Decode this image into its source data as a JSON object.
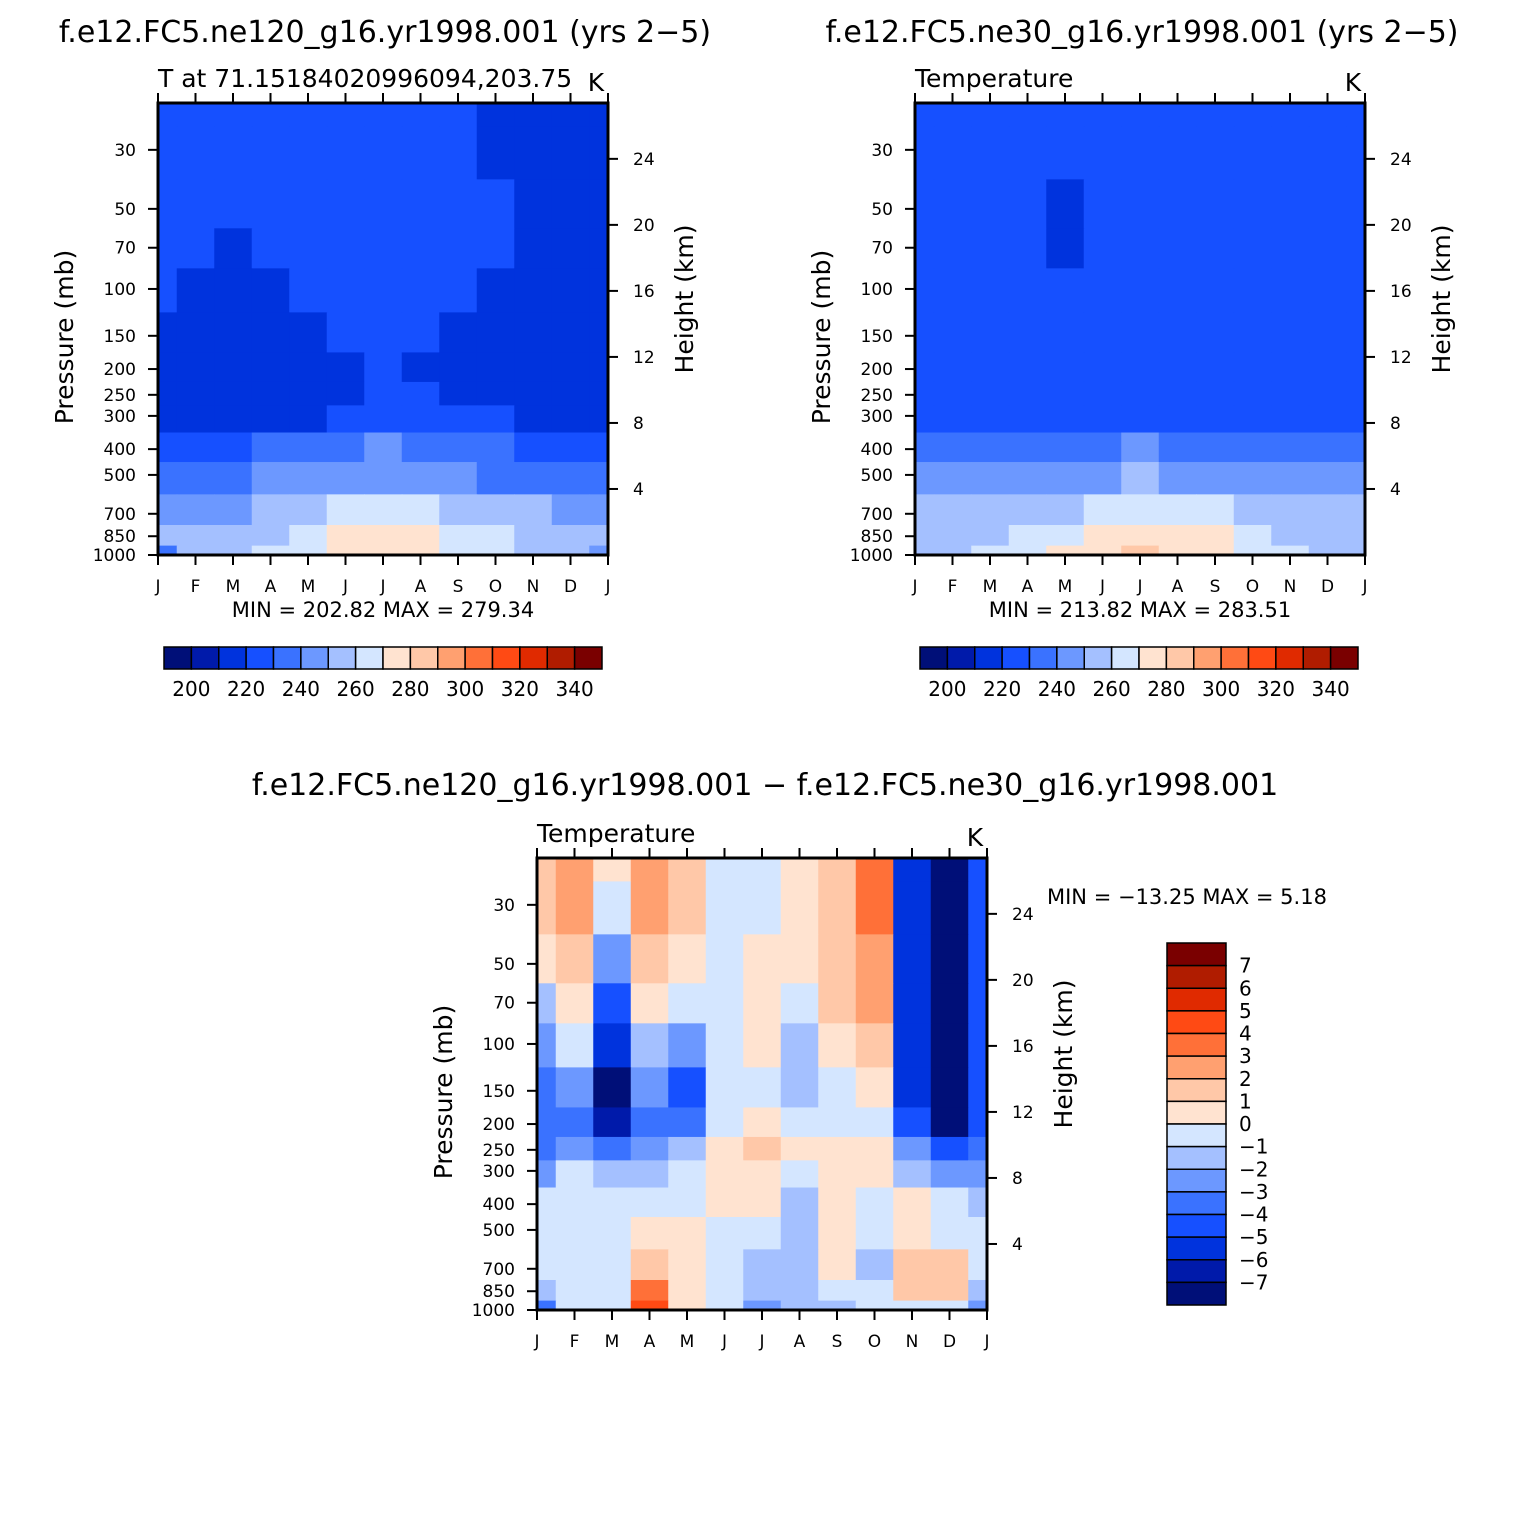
{
  "chart_data": [
    {
      "id": "p1",
      "type": "heatmap",
      "title": "f.e12.FC5.ne120_g16.yr1998.001 (yrs 2−5)",
      "subtitle": "T at 71.15184020996094,203.75",
      "units": "K",
      "ylabel": "Pressure (mb)",
      "y2label": "Height (km)",
      "x_ticks": [
        "J",
        "F",
        "M",
        "A",
        "M",
        "J",
        "J",
        "A",
        "S",
        "O",
        "N",
        "D",
        "J"
      ],
      "y_ticks": [
        30,
        50,
        70,
        100,
        150,
        200,
        250,
        300,
        400,
        500,
        700,
        850,
        1000
      ],
      "y_range": [
        20,
        1000
      ],
      "height_ticks": [
        24,
        20,
        16,
        12,
        8,
        4
      ],
      "stats_text": "MIN = 202.82 MAX = 279.34",
      "min": 202.82,
      "max": 279.34,
      "colorbar": {
        "orientation": "horizontal",
        "labels": [
          "200",
          "220",
          "240",
          "260",
          "280",
          "300",
          "320",
          "340"
        ],
        "levels": [
          200,
          210,
          220,
          230,
          240,
          250,
          260,
          270,
          280,
          290,
          300,
          310,
          320,
          330,
          340
        ]
      },
      "grid": {
        "x": [
          0,
          1,
          2,
          3,
          4,
          5,
          6,
          7,
          8,
          9,
          10,
          11,
          12
        ],
        "p": [
          20,
          30,
          50,
          70,
          100,
          150,
          200,
          250,
          300,
          400,
          500,
          700,
          850,
          1000
        ],
        "v": [
          [
            225,
            225,
            225,
            225,
            225,
            225,
            225,
            225,
            225,
            218,
            218,
            214,
            214
          ],
          [
            225,
            225,
            225,
            225,
            225,
            225,
            225,
            225,
            225,
            218,
            218,
            214,
            214
          ],
          [
            225,
            222,
            222,
            225,
            225,
            225,
            225,
            225,
            225,
            222,
            218,
            214,
            214
          ],
          [
            222,
            222,
            218,
            222,
            225,
            225,
            225,
            225,
            222,
            222,
            218,
            214,
            214
          ],
          [
            222,
            218,
            218,
            218,
            222,
            225,
            225,
            225,
            222,
            218,
            218,
            214,
            214
          ],
          [
            218,
            218,
            218,
            218,
            218,
            222,
            225,
            222,
            218,
            218,
            218,
            214,
            214
          ],
          [
            218,
            218,
            218,
            218,
            218,
            218,
            225,
            218,
            218,
            218,
            218,
            214,
            214
          ],
          [
            218,
            218,
            218,
            218,
            218,
            218,
            222,
            222,
            218,
            218,
            218,
            218,
            218
          ],
          [
            218,
            218,
            218,
            218,
            218,
            222,
            228,
            222,
            222,
            222,
            218,
            218,
            218
          ],
          [
            228,
            228,
            228,
            232,
            235,
            238,
            240,
            238,
            235,
            232,
            228,
            228,
            228
          ],
          [
            238,
            238,
            238,
            240,
            242,
            245,
            248,
            245,
            242,
            238,
            238,
            238,
            238
          ],
          [
            248,
            248,
            248,
            250,
            255,
            262,
            265,
            262,
            258,
            255,
            250,
            248,
            248
          ],
          [
            252,
            252,
            252,
            258,
            266,
            272,
            274,
            273,
            268,
            262,
            256,
            252,
            252
          ],
          [
            238,
            252,
            255,
            262,
            268,
            272,
            274,
            273,
            268,
            262,
            256,
            252,
            240
          ]
        ]
      }
    },
    {
      "id": "p2",
      "type": "heatmap",
      "title": "f.e12.FC5.ne30_g16.yr1998.001 (yrs 2−5)",
      "subtitle": "Temperature",
      "units": "K",
      "ylabel": "Pressure (mb)",
      "y2label": "Height (km)",
      "x_ticks": [
        "J",
        "F",
        "M",
        "A",
        "M",
        "J",
        "J",
        "A",
        "S",
        "O",
        "N",
        "D",
        "J"
      ],
      "y_ticks": [
        30,
        50,
        70,
        100,
        150,
        200,
        250,
        300,
        400,
        500,
        700,
        850,
        1000
      ],
      "y_range": [
        20,
        1000
      ],
      "height_ticks": [
        24,
        20,
        16,
        12,
        8,
        4
      ],
      "stats_text": "MIN = 213.82 MAX = 283.51",
      "min": 213.82,
      "max": 283.51,
      "colorbar": {
        "orientation": "horizontal",
        "labels": [
          "200",
          "220",
          "240",
          "260",
          "280",
          "300",
          "320",
          "340"
        ],
        "levels": [
          200,
          210,
          220,
          230,
          240,
          250,
          260,
          270,
          280,
          290,
          300,
          310,
          320,
          330,
          340
        ]
      },
      "grid": {
        "x": [
          0,
          1,
          2,
          3,
          4,
          5,
          6,
          7,
          8,
          9,
          10,
          11,
          12
        ],
        "p": [
          20,
          30,
          50,
          70,
          100,
          150,
          200,
          250,
          300,
          400,
          500,
          700,
          850,
          1000
        ],
        "v": [
          [
            222,
            225,
            225,
            225,
            225,
            225,
            225,
            225,
            225,
            222,
            222,
            222,
            222
          ],
          [
            222,
            225,
            225,
            225,
            225,
            225,
            225,
            225,
            225,
            222,
            222,
            222,
            222
          ],
          [
            222,
            225,
            225,
            225,
            218,
            225,
            225,
            225,
            225,
            222,
            222,
            222,
            222
          ],
          [
            222,
            225,
            222,
            225,
            218,
            225,
            225,
            225,
            225,
            222,
            222,
            222,
            222
          ],
          [
            222,
            222,
            222,
            222,
            222,
            225,
            225,
            225,
            225,
            222,
            225,
            222,
            222
          ],
          [
            222,
            222,
            222,
            222,
            222,
            222,
            225,
            225,
            222,
            222,
            222,
            222,
            222
          ],
          [
            222,
            222,
            222,
            222,
            222,
            222,
            222,
            222,
            222,
            222,
            222,
            222,
            222
          ],
          [
            222,
            222,
            222,
            222,
            222,
            222,
            224,
            222,
            222,
            222,
            222,
            222,
            222
          ],
          [
            222,
            222,
            222,
            222,
            222,
            225,
            228,
            225,
            222,
            222,
            222,
            222,
            222
          ],
          [
            232,
            232,
            232,
            234,
            236,
            238,
            240,
            238,
            236,
            234,
            232,
            232,
            232
          ],
          [
            242,
            242,
            242,
            244,
            246,
            248,
            250,
            248,
            246,
            244,
            242,
            242,
            242
          ],
          [
            252,
            252,
            252,
            254,
            258,
            264,
            268,
            264,
            260,
            256,
            254,
            252,
            252
          ],
          [
            255,
            256,
            258,
            262,
            268,
            274,
            278,
            276,
            270,
            264,
            258,
            256,
            255
          ],
          [
            254,
            258,
            262,
            265,
            270,
            276,
            282,
            278,
            272,
            265,
            260,
            256,
            254
          ]
        ]
      }
    },
    {
      "id": "p3",
      "type": "heatmap",
      "title": "f.e12.FC5.ne120_g16.yr1998.001 − f.e12.FC5.ne30_g16.yr1998.001",
      "subtitle": "Temperature",
      "units": "K",
      "ylabel": "Pressure (mb)",
      "y2label": "Height (km)",
      "x_ticks": [
        "J",
        "F",
        "M",
        "A",
        "M",
        "J",
        "J",
        "A",
        "S",
        "O",
        "N",
        "D",
        "J"
      ],
      "y_ticks": [
        30,
        50,
        70,
        100,
        150,
        200,
        250,
        300,
        400,
        500,
        700,
        850,
        1000
      ],
      "y_range": [
        20,
        1000
      ],
      "height_ticks": [
        24,
        20,
        16,
        12,
        8,
        4
      ],
      "stats_text": "MIN = −13.25 MAX =    5.18",
      "min": -13.25,
      "max": 5.18,
      "colorbar": {
        "orientation": "vertical",
        "labels": [
          "7",
          "6",
          "5",
          "4",
          "3",
          "2",
          "1",
          "0",
          "−1",
          "−2",
          "−3",
          "−4",
          "−5",
          "−6",
          "−7"
        ],
        "levels": [
          -7,
          -6,
          -5,
          -4,
          -3,
          -2,
          -1,
          0,
          1,
          2,
          3,
          4,
          5,
          6,
          7
        ]
      },
      "grid": {
        "x": [
          0,
          1,
          2,
          3,
          4,
          5,
          6,
          7,
          8,
          9,
          10,
          11,
          12
        ],
        "p": [
          20,
          30,
          50,
          70,
          100,
          150,
          200,
          250,
          300,
          400,
          500,
          700,
          850,
          1000
        ],
        "v": [
          [
            1.5,
            2.5,
            0.5,
            2.5,
            1.5,
            -0.5,
            -0.5,
            0.5,
            1.5,
            3.5,
            -6,
            -12,
            -5
          ],
          [
            1.5,
            2.2,
            -0.5,
            2.0,
            1.5,
            -0.5,
            -0.5,
            0.5,
            1.5,
            3.2,
            -6,
            -12,
            -5
          ],
          [
            0.5,
            1.5,
            -3.0,
            1.5,
            0.5,
            -0.5,
            0.5,
            0.5,
            1.2,
            2.5,
            -6,
            -12,
            -5
          ],
          [
            -1.5,
            0.5,
            -4.5,
            0.5,
            -0.5,
            -0.5,
            0.5,
            -0.5,
            1.0,
            2.0,
            -6,
            -12,
            -5
          ],
          [
            -2.5,
            -1.0,
            -6.0,
            -1.5,
            -2.5,
            -0.5,
            0.5,
            -1.5,
            0.5,
            1.5,
            -6,
            -12,
            -5
          ],
          [
            -4.0,
            -3.0,
            -7.5,
            -3.0,
            -5.0,
            -1.0,
            -0.5,
            -2.0,
            -0.5,
            0.5,
            -6,
            -12,
            -5
          ],
          [
            -4.0,
            -3.5,
            -7.0,
            -3.5,
            -4.0,
            -1.0,
            0.5,
            -0.5,
            -0.5,
            -0.5,
            -5,
            -9,
            -5
          ],
          [
            -3.5,
            -3.0,
            -4.0,
            -3.0,
            -2.0,
            0.5,
            1.5,
            0.5,
            0.5,
            0.5,
            -3,
            -5,
            -4
          ],
          [
            -2.5,
            -1.0,
            -2.0,
            -1.5,
            -1.0,
            0.5,
            0.5,
            -0.5,
            0.5,
            0.5,
            -1.5,
            -3,
            -3
          ],
          [
            -0.5,
            -0.5,
            -0.5,
            -0.5,
            -0.5,
            0.5,
            0.5,
            -1.5,
            0.5,
            -0.5,
            0.5,
            -0.5,
            -1.5
          ],
          [
            -0.5,
            -0.5,
            -0.5,
            0.5,
            0.5,
            -0.5,
            -0.5,
            -2.0,
            0.5,
            -0.5,
            0.5,
            -0.5,
            -1.0
          ],
          [
            -1.0,
            -0.5,
            -0.5,
            1.5,
            0.5,
            -0.5,
            -1.5,
            -2.0,
            0.5,
            -1.5,
            1.5,
            1.5,
            -1.0
          ],
          [
            -2.0,
            -0.5,
            -0.5,
            3.0,
            0.5,
            -0.5,
            -2.0,
            -2.0,
            -1.0,
            -0.5,
            1.5,
            1.5,
            -1.5
          ],
          [
            -3.5,
            -1.0,
            -1.0,
            4.5,
            0.5,
            -1.0,
            -3.0,
            -2.0,
            -1.5,
            -1.0,
            -0.5,
            -0.5,
            -3.0
          ]
        ]
      }
    }
  ],
  "palettes": {
    "abs": [
      "#000f78",
      "#001aaa",
      "#0033dd",
      "#1650ff",
      "#3a72ff",
      "#6c98ff",
      "#a4c0ff",
      "#d4e6ff",
      "#ffe3d0",
      "#ffc8a8",
      "#ffa070",
      "#ff7038",
      "#ff4a14",
      "#e02a00",
      "#b01c00",
      "#7a0000"
    ],
    "diff": [
      "#000f78",
      "#001aaa",
      "#0033dd",
      "#1650ff",
      "#3a72ff",
      "#6c98ff",
      "#a4c0ff",
      "#d4e6ff",
      "#ffe3d0",
      "#ffc8a8",
      "#ffa070",
      "#ff7038",
      "#ff4a14",
      "#e02a00",
      "#b01c00",
      "#7a0000"
    ]
  }
}
